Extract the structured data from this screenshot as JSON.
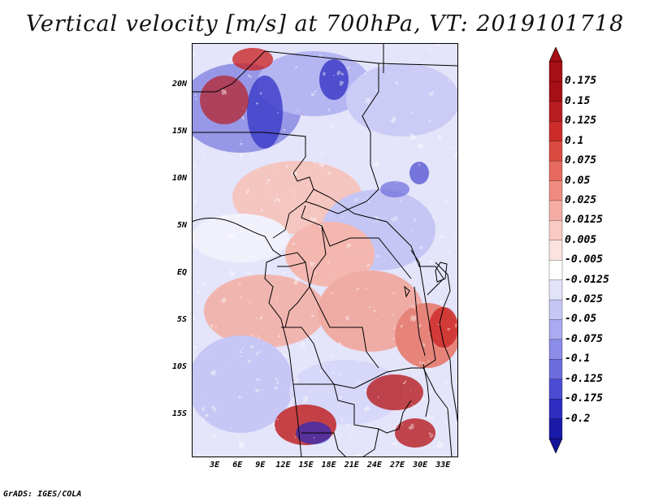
{
  "title": "Vertical velocity [m/s] at 700hPa, VT: 2019101718",
  "credit": "GrADS: IGES/COLA",
  "map": {
    "lat_range": [
      -19.5,
      24.5
    ],
    "lon_range": [
      0,
      35
    ],
    "lat_ticks": [
      {
        "value": 20,
        "label": "20N"
      },
      {
        "value": 15,
        "label": "15N"
      },
      {
        "value": 10,
        "label": "10N"
      },
      {
        "value": 5,
        "label": "5N"
      },
      {
        "value": 0,
        "label": "EQ"
      },
      {
        "value": -5,
        "label": "5S"
      },
      {
        "value": -10,
        "label": "10S"
      },
      {
        "value": -15,
        "label": "15S"
      }
    ],
    "lon_ticks": [
      {
        "value": 3,
        "label": "3E"
      },
      {
        "value": 6,
        "label": "6E"
      },
      {
        "value": 9,
        "label": "9E"
      },
      {
        "value": 12,
        "label": "12E"
      },
      {
        "value": 15,
        "label": "15E"
      },
      {
        "value": 18,
        "label": "18E"
      },
      {
        "value": 21,
        "label": "21E"
      },
      {
        "value": 24,
        "label": "24E"
      },
      {
        "value": 27,
        "label": "27E"
      },
      {
        "value": 30,
        "label": "30E"
      },
      {
        "value": 33,
        "label": "33E"
      }
    ]
  },
  "colorbar": {
    "levels": [
      {
        "label": "0.175",
        "color": "#a50f15"
      },
      {
        "label": "0.15",
        "color": "#b81d1f"
      },
      {
        "label": "0.125",
        "color": "#cb2c2a"
      },
      {
        "label": "0.1",
        "color": "#db4a40"
      },
      {
        "label": "0.075",
        "color": "#e66a5e"
      },
      {
        "label": "0.05",
        "color": "#ef8c80"
      },
      {
        "label": "0.025",
        "color": "#f5ada3"
      },
      {
        "label": "0.0125",
        "color": "#f9cac3"
      },
      {
        "label": "0.005",
        "color": "#fce3df"
      },
      {
        "label": "-0.005",
        "color": "#ffffff"
      },
      {
        "label": "-0.0125",
        "color": "#e2e2fb"
      },
      {
        "label": "-0.025",
        "color": "#c7c7f6"
      },
      {
        "label": "-0.05",
        "color": "#aaaaf0"
      },
      {
        "label": "-0.075",
        "color": "#8b8be8"
      },
      {
        "label": "-0.1",
        "color": "#6c6cde"
      },
      {
        "label": "-0.125",
        "color": "#4c4cd2"
      },
      {
        "label": "-0.175",
        "color": "#2d2dc2"
      },
      {
        "label": "-0.2",
        "color": "#1a1aa8"
      }
    ],
    "top_arrow_color": "#a50f15",
    "bottom_arrow_color": "#12129a"
  }
}
